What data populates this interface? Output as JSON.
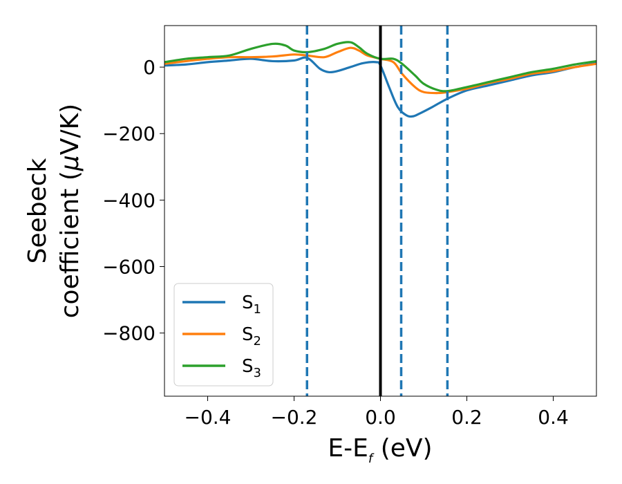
{
  "chart_data": {
    "type": "line",
    "xlabel": "E-E",
    "xlabel_sub": "f",
    "xlabel_unit": " (eV)",
    "ylabel_line1": "Seebeck",
    "ylabel_line2": "coefficient  (",
    "ylabel_mu": "μ",
    "ylabel_unit": "V/K)",
    "xlim": [
      -0.5,
      0.5
    ],
    "ylim": [
      -990,
      125
    ],
    "xticks": [
      -0.4,
      -0.2,
      0.0,
      0.2,
      0.4
    ],
    "xtick_labels": [
      "−0.4",
      "−0.2",
      "0.0",
      "0.2",
      "0.4"
    ],
    "yticks": [
      0,
      -200,
      -400,
      -600,
      -800
    ],
    "ytick_labels": [
      "0",
      "−200",
      "−400",
      "−600",
      "−800"
    ],
    "grid": false,
    "legend_position": "lower-left",
    "vlines": [
      {
        "x": 0.0,
        "style": "solid",
        "color": "#000000"
      },
      {
        "x": -0.17,
        "style": "dashed",
        "color": "#1f77b4"
      },
      {
        "x": 0.048,
        "style": "dashed",
        "color": "#1f77b4"
      },
      {
        "x": 0.155,
        "style": "dashed",
        "color": "#1f77b4"
      }
    ],
    "series": [
      {
        "name": "S",
        "subscript": "1",
        "color": "#1f77b4",
        "x": [
          -0.5,
          -0.45,
          -0.4,
          -0.35,
          -0.3,
          -0.25,
          -0.2,
          -0.17,
          -0.14,
          -0.12,
          -0.1,
          -0.07,
          -0.04,
          -0.01,
          0.0,
          0.02,
          0.04,
          0.06,
          0.075,
          0.09,
          0.12,
          0.155,
          0.2,
          0.25,
          0.3,
          0.35,
          0.4,
          0.45,
          0.5
        ],
        "y": [
          5,
          8,
          15,
          20,
          25,
          18,
          20,
          28,
          -5,
          -15,
          -12,
          0,
          12,
          15,
          5,
          -60,
          -120,
          -145,
          -148,
          -140,
          -120,
          -95,
          -70,
          -55,
          -40,
          -25,
          -15,
          0,
          12
        ]
      },
      {
        "name": "S",
        "subscript": "2",
        "color": "#ff7f0e",
        "x": [
          -0.5,
          -0.45,
          -0.4,
          -0.35,
          -0.3,
          -0.25,
          -0.2,
          -0.17,
          -0.13,
          -0.1,
          -0.07,
          -0.05,
          -0.03,
          0.0,
          0.03,
          0.05,
          0.08,
          0.1,
          0.13,
          0.155,
          0.2,
          0.25,
          0.3,
          0.35,
          0.4,
          0.45,
          0.5
        ],
        "y": [
          10,
          18,
          25,
          30,
          30,
          32,
          38,
          35,
          30,
          45,
          58,
          50,
          35,
          25,
          15,
          -20,
          -60,
          -75,
          -78,
          -75,
          -65,
          -48,
          -35,
          -20,
          -12,
          0,
          10
        ]
      },
      {
        "name": "S",
        "subscript": "3",
        "color": "#2ca02c",
        "x": [
          -0.5,
          -0.45,
          -0.4,
          -0.35,
          -0.3,
          -0.25,
          -0.22,
          -0.2,
          -0.17,
          -0.13,
          -0.1,
          -0.07,
          -0.05,
          -0.03,
          0.0,
          0.03,
          0.05,
          0.08,
          0.1,
          0.13,
          0.155,
          0.2,
          0.25,
          0.3,
          0.35,
          0.4,
          0.45,
          0.5
        ],
        "y": [
          15,
          25,
          30,
          35,
          55,
          70,
          65,
          50,
          45,
          55,
          70,
          75,
          60,
          40,
          25,
          25,
          10,
          -25,
          -50,
          -68,
          -72,
          -60,
          -45,
          -30,
          -15,
          -5,
          8,
          18
        ]
      }
    ]
  }
}
